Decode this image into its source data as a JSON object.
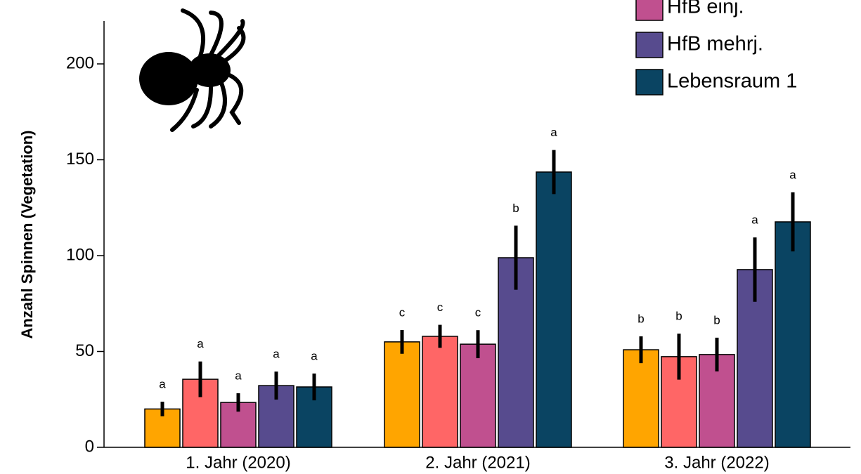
{
  "chart_data": {
    "type": "bar",
    "ylabel": "Anzahl Spinnen (Vegetation)",
    "categories": [
      "1. Jahr (2020)",
      "2. Jahr (2021)",
      "3. Jahr (2022)"
    ],
    "ylim": [
      0,
      200
    ],
    "yticks": [
      0,
      50,
      100,
      150,
      200
    ],
    "series": [
      {
        "color": "#FFA500",
        "values": [
          20,
          55,
          50.9
        ],
        "errors": [
          3.8,
          6.2,
          7
        ],
        "letters": [
          "a",
          "c",
          "b"
        ]
      },
      {
        "color": "#FF6666",
        "values": [
          35.5,
          57.9,
          47.3
        ],
        "errors": [
          9.3,
          6,
          12
        ],
        "letters": [
          "a",
          "c",
          "b"
        ]
      },
      {
        "name": "HfB einj.",
        "color": "#C0508F",
        "values": [
          23.4,
          53.8,
          48.4
        ],
        "errors": [
          4.8,
          7.3,
          8.8
        ],
        "letters": [
          "a",
          "c",
          "b"
        ]
      },
      {
        "name": "HfB mehrj.",
        "color": "#574B8E",
        "values": [
          32.2,
          98.9,
          92.7
        ],
        "errors": [
          7.3,
          16.7,
          16.8
        ],
        "letters": [
          "a",
          "b",
          "a"
        ]
      },
      {
        "name": "Lebensraum 1",
        "color": "#0A4462",
        "values": [
          31.5,
          143.6,
          117.6
        ],
        "errors": [
          7,
          11.5,
          15.4
        ],
        "letters": [
          "a",
          "a",
          "a"
        ]
      }
    ]
  }
}
